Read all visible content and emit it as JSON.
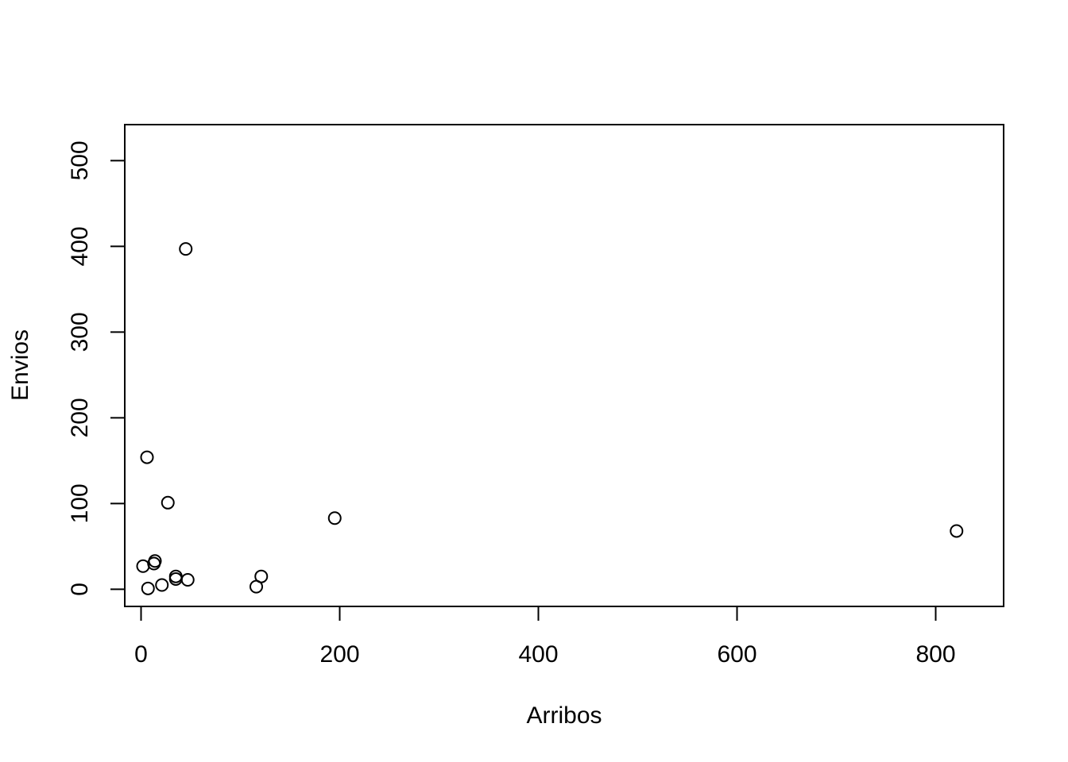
{
  "chart_data": {
    "type": "scatter",
    "title": "",
    "xlabel": "Arribos",
    "ylabel": "Envios",
    "xlim": [
      -16.4,
      868.4
    ],
    "ylim": [
      -20.0,
      542.0
    ],
    "xticks": [
      0,
      200,
      400,
      600,
      800
    ],
    "yticks": [
      0,
      100,
      200,
      300,
      400,
      500
    ],
    "xtick_labels": [
      "0",
      "200",
      "400",
      "600",
      "800"
    ],
    "ytick_labels": [
      "0",
      "100",
      "200",
      "300",
      "400",
      "500"
    ],
    "grid": false,
    "legend": "none",
    "marker": "open-circle",
    "colors": {
      "marker": "#000000",
      "axis": "#000000",
      "background": "#ffffff"
    },
    "points": [
      {
        "x": 45,
        "y": 397
      },
      {
        "x": 6,
        "y": 154
      },
      {
        "x": 27,
        "y": 101
      },
      {
        "x": 195,
        "y": 83
      },
      {
        "x": 821,
        "y": 68
      },
      {
        "x": 14,
        "y": 33
      },
      {
        "x": 13,
        "y": 30
      },
      {
        "x": 2,
        "y": 27
      },
      {
        "x": 35,
        "y": 15
      },
      {
        "x": 35,
        "y": 12
      },
      {
        "x": 121,
        "y": 15
      },
      {
        "x": 47,
        "y": 11
      },
      {
        "x": 21,
        "y": 5
      },
      {
        "x": 116,
        "y": 3
      },
      {
        "x": 7,
        "y": 1
      }
    ]
  }
}
